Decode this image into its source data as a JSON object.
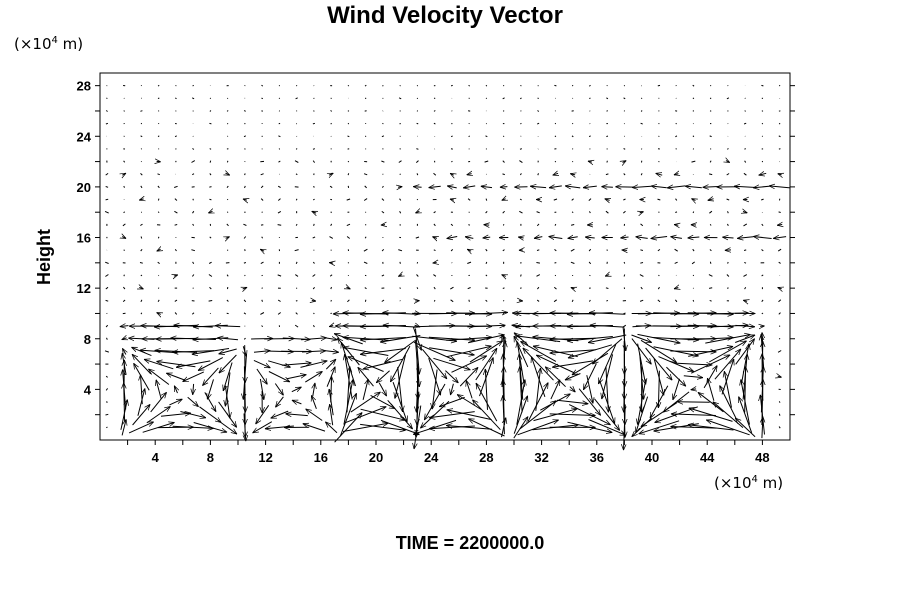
{
  "chart_data": {
    "type": "vector_field",
    "title": "Wind Velocity Vector",
    "ylabel": "Height",
    "x_unit": {
      "prefix": "(×10",
      "exp": "4",
      "suffix": " m)"
    },
    "y_unit": {
      "prefix": "(×10",
      "exp": "4",
      "suffix": " m)"
    },
    "xlim": [
      0,
      50
    ],
    "ylim": [
      0,
      29
    ],
    "x_ticks": [
      4,
      8,
      12,
      16,
      20,
      24,
      28,
      32,
      36,
      40,
      44,
      48
    ],
    "y_ticks": [
      4,
      8,
      12,
      16,
      20,
      24,
      28
    ],
    "grid": false,
    "cells": [
      {
        "x_center": 6,
        "half_width": 4.5,
        "top": 7.5,
        "strength": 1.1,
        "direction": 1
      },
      {
        "x_center": 14,
        "half_width": 3.5,
        "top": 7,
        "strength": 0.8,
        "direction": -1
      },
      {
        "x_center": 20,
        "half_width": 2.7,
        "top": 8.5,
        "strength": 1.6,
        "direction": 1
      },
      {
        "x_center": 26,
        "half_width": 3.2,
        "top": 8.5,
        "strength": 1.6,
        "direction": -1
      },
      {
        "x_center": 34,
        "half_width": 4,
        "top": 8.5,
        "strength": 1.7,
        "direction": 1
      },
      {
        "x_center": 43,
        "half_width": 4.5,
        "top": 8.5,
        "strength": 1.6,
        "direction": -1
      }
    ],
    "upper_jets": [
      {
        "y": 20,
        "strength": 0.7
      },
      {
        "y": 16,
        "strength": 0.5
      }
    ]
  },
  "footer": {
    "label": "TIME = 2200000.0"
  }
}
